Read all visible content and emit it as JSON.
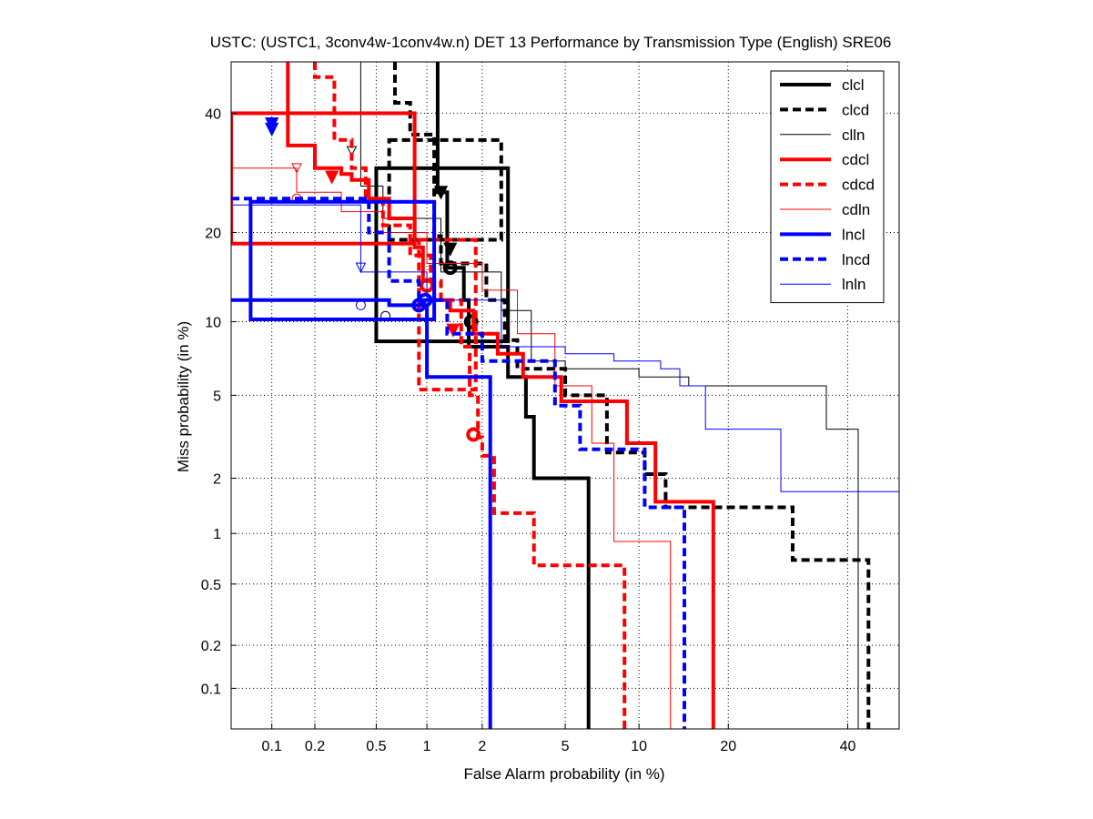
{
  "chart_data": {
    "type": "line",
    "title": "USTC: (USTC1, 3conv4w-1conv4w.n) DET 13 Performance by Transmission Type (English) SRE06",
    "xlabel": "False Alarm probability (in %)",
    "ylabel": "Miss probability (in %)",
    "x_scale": "probit",
    "y_scale": "probit",
    "xlim": [
      0.05,
      50
    ],
    "ylim": [
      0.05,
      50
    ],
    "x_ticks": [
      {
        "v": 0.1,
        "label": "0.1"
      },
      {
        "v": 0.2,
        "label": "0.2"
      },
      {
        "v": 0.5,
        "label": "0.5"
      },
      {
        "v": 1,
        "label": "1"
      },
      {
        "v": 2,
        "label": "2"
      },
      {
        "v": 5,
        "label": "5"
      },
      {
        "v": 10,
        "label": "10"
      },
      {
        "v": 20,
        "label": "20"
      },
      {
        "v": 40,
        "label": "40"
      }
    ],
    "y_ticks": [
      {
        "v": 0.1,
        "label": "0.1"
      },
      {
        "v": 0.2,
        "label": "0.2"
      },
      {
        "v": 0.5,
        "label": "0.5"
      },
      {
        "v": 1,
        "label": "1"
      },
      {
        "v": 2,
        "label": "2"
      },
      {
        "v": 5,
        "label": "5"
      },
      {
        "v": 10,
        "label": "10"
      },
      {
        "v": 20,
        "label": "20"
      },
      {
        "v": 40,
        "label": "40"
      }
    ],
    "grid": true,
    "legend_position": "top-right",
    "series": [
      {
        "name": "clcl",
        "color": "#000000",
        "style": "solid",
        "weight": "thick",
        "points": [
          [
            1.15,
            50
          ],
          [
            1.15,
            26
          ],
          [
            1.3,
            26
          ],
          [
            1.3,
            15.5
          ],
          [
            1.6,
            15.5
          ],
          [
            1.6,
            12
          ],
          [
            1.7,
            12
          ],
          [
            1.7,
            8
          ],
          [
            2.7,
            8
          ],
          [
            2.7,
            6
          ],
          [
            3.3,
            6
          ],
          [
            3.3,
            4
          ],
          [
            3.6,
            4
          ],
          [
            3.6,
            2
          ],
          [
            6.3,
            2
          ],
          [
            6.3,
            0.05
          ]
        ],
        "act_dcf": [
          1.75,
          10
        ],
        "min_dcf": [
          1.2,
          26
        ],
        "box": [
          0.5,
          2.7,
          8.4,
          30
        ]
      },
      {
        "name": "clcd",
        "color": "#000000",
        "style": "dashed",
        "weight": "thick",
        "points": [
          [
            0.65,
            50
          ],
          [
            0.65,
            42
          ],
          [
            0.8,
            42
          ],
          [
            0.8,
            36
          ],
          [
            1.1,
            36
          ],
          [
            1.1,
            19.5
          ],
          [
            1.2,
            19.5
          ],
          [
            1.2,
            16
          ],
          [
            2.1,
            16
          ],
          [
            2.1,
            12
          ],
          [
            2.6,
            12
          ],
          [
            2.6,
            8.5
          ],
          [
            3.0,
            8.5
          ],
          [
            3.0,
            6.5
          ],
          [
            5.0,
            6.5
          ],
          [
            5.0,
            5
          ],
          [
            7.5,
            5
          ],
          [
            7.5,
            2.7
          ],
          [
            10.5,
            2.7
          ],
          [
            10.5,
            2.1
          ],
          [
            12.5,
            2.1
          ],
          [
            12.5,
            1.4
          ],
          [
            30,
            1.4
          ],
          [
            30,
            0.7
          ],
          [
            44,
            0.7
          ],
          [
            44,
            0.05
          ]
        ],
        "act_dcf": [
          1.35,
          15.5
        ],
        "min_dcf": [
          1.35,
          17.8
        ],
        "box": [
          0.6,
          2.5,
          19,
          35
        ]
      },
      {
        "name": "clln",
        "color": "#000000",
        "style": "solid",
        "weight": "thin",
        "points": [
          [
            0.4,
            50
          ],
          [
            0.4,
            27
          ],
          [
            0.55,
            27
          ],
          [
            0.55,
            22
          ],
          [
            1.2,
            22
          ],
          [
            1.2,
            15
          ],
          [
            2.5,
            15
          ],
          [
            2.5,
            11
          ],
          [
            3.5,
            11
          ],
          [
            3.5,
            7
          ],
          [
            5,
            7
          ],
          [
            5,
            6.5
          ],
          [
            10,
            6.5
          ],
          [
            10,
            6
          ],
          [
            15,
            6
          ],
          [
            15,
            5.5
          ],
          [
            36,
            5.5
          ],
          [
            36,
            3.5
          ],
          [
            42,
            3.5
          ],
          [
            42,
            0.05
          ]
        ],
        "act_dcf": [
          0.57,
          10.5
        ],
        "min_dcf": [
          0.35,
          33
        ]
      },
      {
        "name": "cdcl",
        "color": "#ff0000",
        "style": "solid",
        "weight": "thick",
        "points": [
          [
            0.13,
            50
          ],
          [
            0.13,
            34
          ],
          [
            0.2,
            34
          ],
          [
            0.2,
            30
          ],
          [
            0.3,
            30
          ],
          [
            0.3,
            29
          ],
          [
            0.35,
            29
          ],
          [
            0.35,
            28
          ],
          [
            0.45,
            28
          ],
          [
            0.45,
            25
          ],
          [
            0.6,
            25
          ],
          [
            0.6,
            22
          ],
          [
            0.85,
            22
          ],
          [
            0.85,
            18
          ],
          [
            0.95,
            18
          ],
          [
            0.95,
            14
          ],
          [
            1.1,
            14
          ],
          [
            1.1,
            12
          ],
          [
            1.35,
            12
          ],
          [
            1.35,
            11
          ],
          [
            1.8,
            11
          ],
          [
            1.8,
            9
          ],
          [
            2.4,
            9
          ],
          [
            2.4,
            7.5
          ],
          [
            3.2,
            7.5
          ],
          [
            3.2,
            6
          ],
          [
            4.8,
            6
          ],
          [
            4.8,
            4.7
          ],
          [
            9.0,
            4.7
          ],
          [
            9.0,
            3.0
          ],
          [
            11.5,
            3.0
          ],
          [
            11.5,
            1.5
          ],
          [
            18,
            1.5
          ],
          [
            18,
            0.05
          ]
        ],
        "act_dcf": [
          1.0,
          13.5
        ],
        "min_dcf": [
          0.26,
          28.5
        ],
        "box": [
          0.05,
          0.85,
          18.5,
          40
        ]
      },
      {
        "name": "cdcd",
        "color": "#ff0000",
        "style": "dashed",
        "weight": "thick",
        "points": [
          [
            0.2,
            50
          ],
          [
            0.2,
            47
          ],
          [
            0.27,
            47
          ],
          [
            0.27,
            35
          ],
          [
            0.35,
            35
          ],
          [
            0.35,
            30
          ],
          [
            0.43,
            30
          ],
          [
            0.43,
            25
          ],
          [
            0.55,
            25
          ],
          [
            0.55,
            21
          ],
          [
            0.8,
            21
          ],
          [
            0.8,
            17
          ],
          [
            1.05,
            17
          ],
          [
            1.05,
            14
          ],
          [
            1.2,
            14
          ],
          [
            1.2,
            12
          ],
          [
            1.55,
            12
          ],
          [
            1.55,
            8
          ],
          [
            1.72,
            8
          ],
          [
            1.72,
            5
          ],
          [
            1.9,
            5
          ],
          [
            1.9,
            3.2
          ],
          [
            2.0,
            3.2
          ],
          [
            2.0,
            2.6
          ],
          [
            2.3,
            2.6
          ],
          [
            2.3,
            1.3
          ],
          [
            3.6,
            1.3
          ],
          [
            3.6,
            0.65
          ],
          [
            8.8,
            0.65
          ],
          [
            8.8,
            0.05
          ]
        ],
        "act_dcf": [
          1.8,
          3.3
        ],
        "min_dcf": [
          1.4,
          9.3
        ],
        "box": [
          0.9,
          1.85,
          5.3,
          19
        ]
      },
      {
        "name": "cdln",
        "color": "#ff0000",
        "style": "solid",
        "weight": "thin",
        "points": [
          [
            0.05,
            50
          ],
          [
            0.05,
            30
          ],
          [
            0.15,
            30
          ],
          [
            0.15,
            26
          ],
          [
            0.3,
            26
          ],
          [
            0.3,
            23
          ],
          [
            0.55,
            23
          ],
          [
            0.55,
            20
          ],
          [
            1.0,
            20
          ],
          [
            1.0,
            16
          ],
          [
            2.0,
            16
          ],
          [
            2.0,
            13
          ],
          [
            3.0,
            13
          ],
          [
            3.0,
            9
          ],
          [
            4.5,
            9
          ],
          [
            4.5,
            5.5
          ],
          [
            6.5,
            5.5
          ],
          [
            6.5,
            3
          ],
          [
            8.0,
            3
          ],
          [
            8.0,
            0.9
          ],
          [
            13,
            0.9
          ],
          [
            13,
            0.05
          ]
        ],
        "act_dcf": [
          0.15,
          25
        ],
        "min_dcf": [
          0.15,
          30
        ]
      },
      {
        "name": "lncl",
        "color": "#0000ff",
        "style": "solid",
        "weight": "thick",
        "points": [
          [
            0.05,
            12
          ],
          [
            0.6,
            12
          ],
          [
            0.6,
            11.5
          ],
          [
            1.0,
            11.5
          ],
          [
            1.0,
            6
          ],
          [
            2.2,
            6
          ],
          [
            2.2,
            0.05
          ]
        ],
        "act_dcf": [
          0.9,
          11.5
        ],
        "min_dcf": [
          0.1,
          38
        ],
        "box": [
          0.07,
          1.1,
          10.2,
          24.5
        ]
      },
      {
        "name": "lncd",
        "color": "#0000ff",
        "style": "dashed",
        "weight": "thick",
        "points": [
          [
            0.05,
            25
          ],
          [
            0.45,
            25
          ],
          [
            0.45,
            20
          ],
          [
            0.6,
            20
          ],
          [
            0.6,
            14
          ],
          [
            0.9,
            14
          ],
          [
            0.9,
            12
          ],
          [
            1.3,
            12
          ],
          [
            1.3,
            9
          ],
          [
            2.0,
            9
          ],
          [
            2.0,
            7
          ],
          [
            4.5,
            7
          ],
          [
            4.5,
            4.5
          ],
          [
            5.8,
            4.5
          ],
          [
            5.8,
            2.8
          ],
          [
            10.5,
            2.8
          ],
          [
            10.5,
            1.4
          ],
          [
            14.5,
            1.4
          ],
          [
            14.5,
            0.05
          ]
        ],
        "act_dcf": [
          0.98,
          12
        ],
        "min_dcf": [
          0.1,
          37
        ]
      },
      {
        "name": "lnln",
        "color": "#0000ff",
        "style": "solid",
        "weight": "thin",
        "points": [
          [
            0.05,
            24
          ],
          [
            0.4,
            24
          ],
          [
            0.4,
            15
          ],
          [
            1.0,
            15
          ],
          [
            1.0,
            12
          ],
          [
            2.5,
            12
          ],
          [
            2.5,
            8
          ],
          [
            5.0,
            8
          ],
          [
            5.0,
            7.5
          ],
          [
            8.0,
            7.5
          ],
          [
            8.0,
            7
          ],
          [
            12,
            7
          ],
          [
            12,
            6.5
          ],
          [
            14,
            6.5
          ],
          [
            14,
            5.5
          ],
          [
            17,
            5.5
          ],
          [
            17,
            3.5
          ],
          [
            28,
            3.5
          ],
          [
            28,
            1.7
          ],
          [
            50,
            1.7
          ]
        ],
        "act_dcf": [
          0.4,
          11.5
        ],
        "min_dcf": [
          0.4,
          15.5
        ]
      }
    ]
  }
}
